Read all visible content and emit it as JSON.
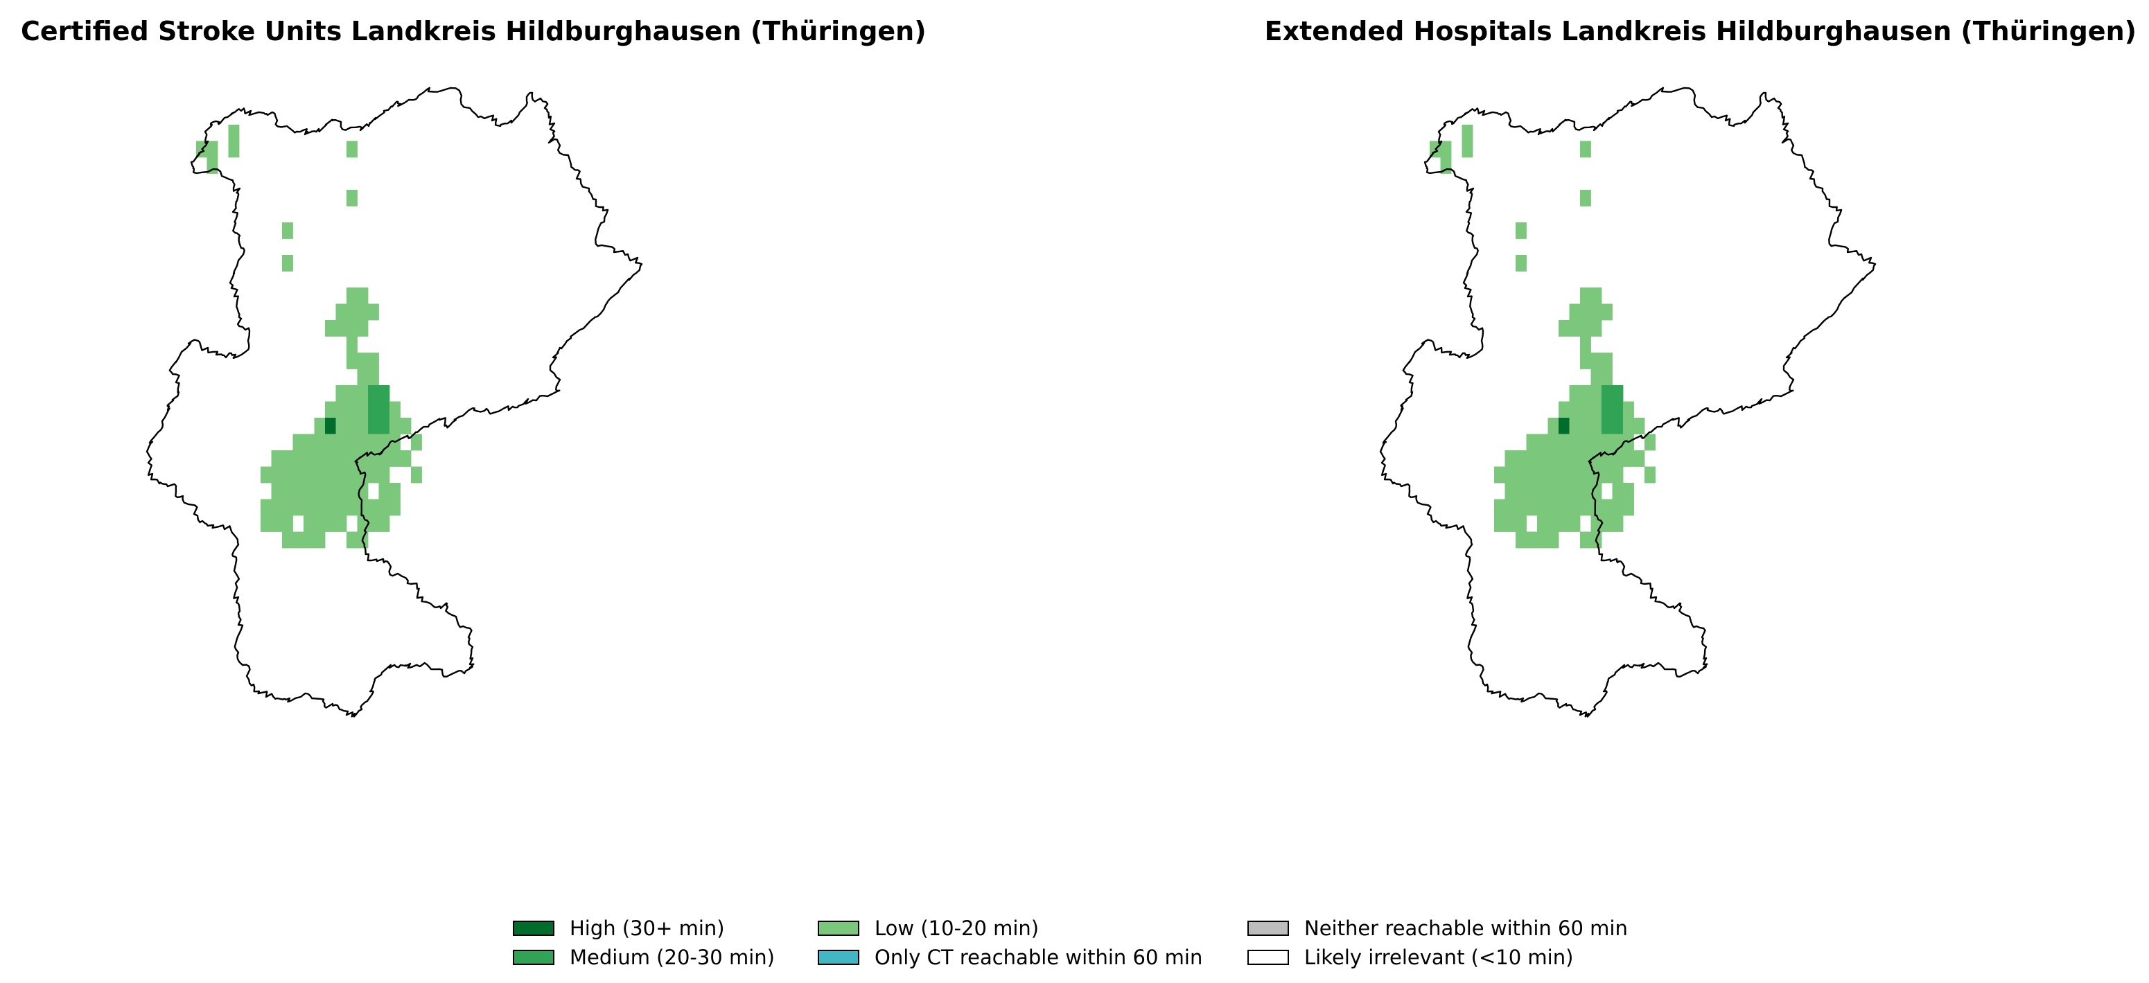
{
  "titles": {
    "left": "Certified Stroke Units Landkreis Hildburghausen (Thüringen)",
    "right": "Extended Hospitals Landkreis Hildburghausen (Thüringen)"
  },
  "legend": [
    {
      "label": "High (30+ min)",
      "color": "#006d2c"
    },
    {
      "label": "Medium (20-30 min)",
      "color": "#31a354"
    },
    {
      "label": "Low (10-20 min)",
      "color": "#7bc77b"
    },
    {
      "label": "Only CT reachable within 60 min",
      "color": "#41b6c4"
    },
    {
      "label": "Neither reachable within 60 min",
      "color": "#bdbdbd"
    },
    {
      "label": "Likely irrelevant (<10 min)",
      "color": "#ffffff"
    }
  ],
  "map_data": {
    "region": "Landkreis Hildburghausen (Thüringen)",
    "maps": [
      "left",
      "right"
    ],
    "cell_category_codes": {
      "L": "Low (10-20 min)",
      "M": "Medium (20-30 min)",
      "H": "High (30+ min)"
    },
    "grid_rows": [
      ".....L......................",
      "..LL.L..........L...........",
      "...L........................",
      "............................",
      "................L...........",
      "............................",
      "..........L.................",
      "............................",
      "..........L.................",
      "............................",
      "................LL..........",
      "...............LLLL.........",
      "..............LLLL..........",
      "................L...........",
      "................LLL.........",
      ".................LL.........",
      "...............LLLMM........",
      "..............LLLLMML.......",
      ".............LHLLLMMLL......",
      "...........LLLLLLLLLL.L.....",
      ".........LLLLLLLLLLLLL......",
      "........LLLLLLLLLLLL..L.....",
      ".........LLLLLLLLL.LL.......",
      "........LLLLLLLLLLLLL.......",
      "........LLL.LLLL.LLL........",
      "..........LLLL..LL.........."
    ]
  }
}
